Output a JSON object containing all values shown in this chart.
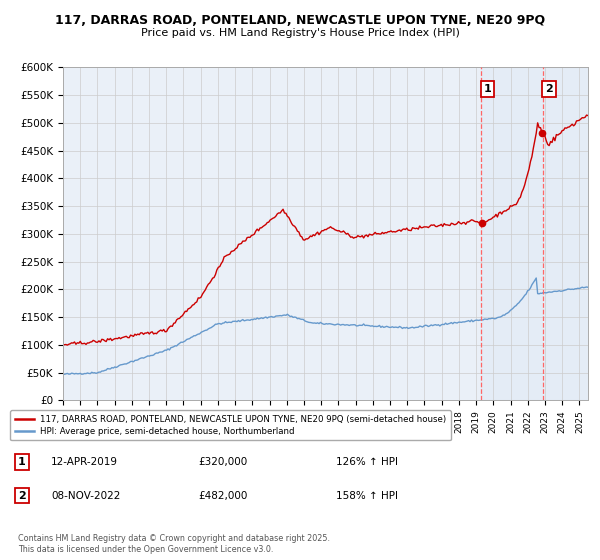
{
  "title_line1": "117, DARRAS ROAD, PONTELAND, NEWCASTLE UPON TYNE, NE20 9PQ",
  "title_line2": "Price paid vs. HM Land Registry's House Price Index (HPI)",
  "red_label": "117, DARRAS ROAD, PONTELAND, NEWCASTLE UPON TYNE, NE20 9PQ (semi-detached house)",
  "blue_label": "HPI: Average price, semi-detached house, Northumberland",
  "annotation1_date": "12-APR-2019",
  "annotation1_price": "£320,000",
  "annotation1_hpi": "126% ↑ HPI",
  "annotation1_value": 320000,
  "annotation1_year": 2019.29,
  "annotation2_date": "08-NOV-2022",
  "annotation2_price": "£482,000",
  "annotation2_hpi": "158% ↑ HPI",
  "annotation2_value": 482000,
  "annotation2_year": 2022.86,
  "footer": "Contains HM Land Registry data © Crown copyright and database right 2025.\nThis data is licensed under the Open Government Licence v3.0.",
  "ylim_min": 0,
  "ylim_max": 600000,
  "red_color": "#cc0000",
  "blue_color": "#6699cc",
  "bg_color": "#eaf0f8",
  "shade_color": "#dce8f5",
  "grid_color": "#cccccc",
  "dashed_color": "#ff6666"
}
